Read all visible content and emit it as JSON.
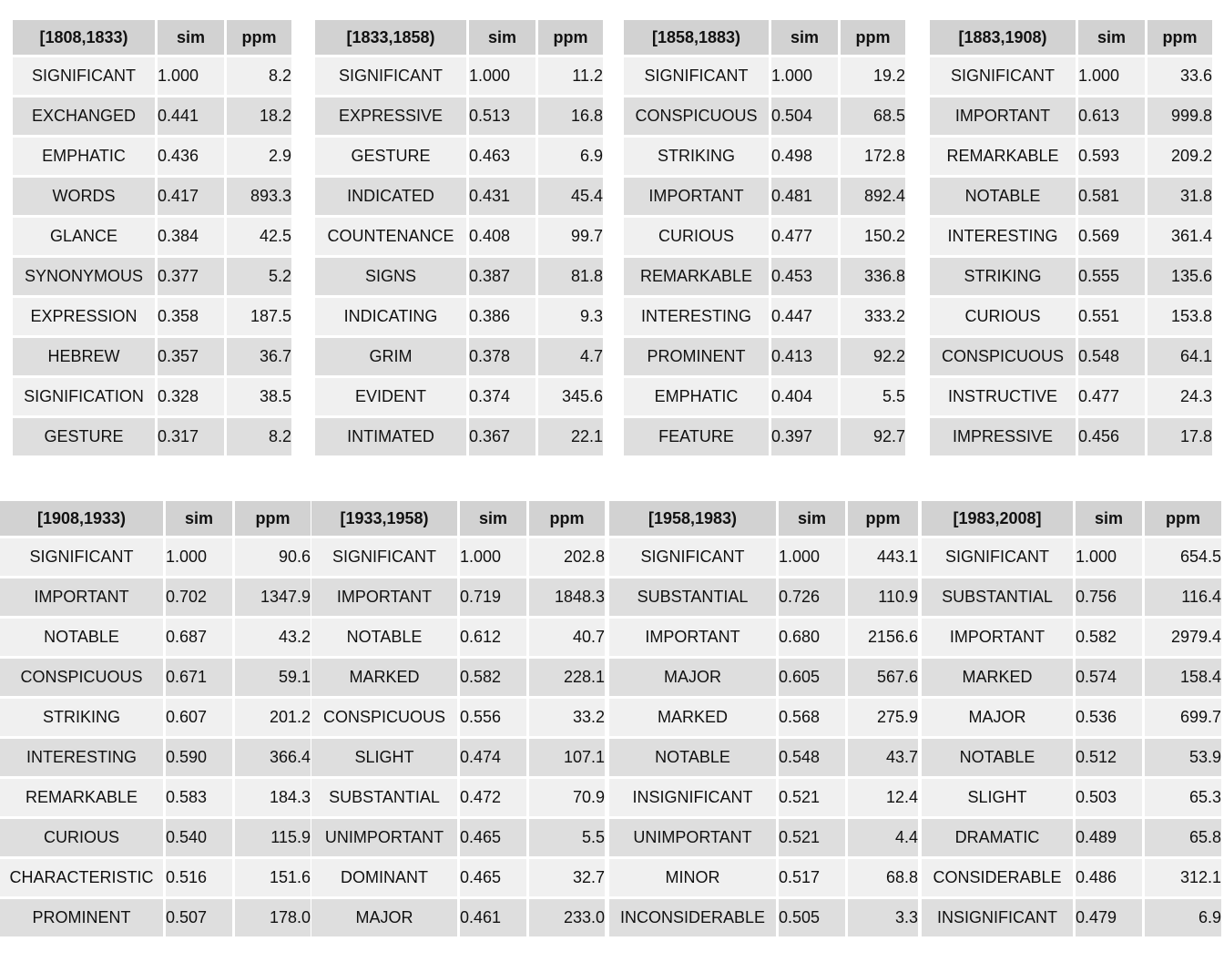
{
  "tables": [
    {
      "period": "[1808,1833)",
      "sim_header": "sim",
      "ppm_header": "ppm",
      "rows": [
        {
          "word": "SIGNIFICANT",
          "sim": "1.000",
          "ppm": "8.2"
        },
        {
          "word": "EXCHANGED",
          "sim": "0.441",
          "ppm": "18.2"
        },
        {
          "word": "EMPHATIC",
          "sim": "0.436",
          "ppm": "2.9"
        },
        {
          "word": "WORDS",
          "sim": "0.417",
          "ppm": "893.3"
        },
        {
          "word": "GLANCE",
          "sim": "0.384",
          "ppm": "42.5"
        },
        {
          "word": "SYNONYMOUS",
          "sim": "0.377",
          "ppm": "5.2"
        },
        {
          "word": "EXPRESSION",
          "sim": "0.358",
          "ppm": "187.5"
        },
        {
          "word": "HEBREW",
          "sim": "0.357",
          "ppm": "36.7"
        },
        {
          "word": "SIGNIFICATION",
          "sim": "0.328",
          "ppm": "38.5"
        },
        {
          "word": "GESTURE",
          "sim": "0.317",
          "ppm": "8.2"
        }
      ]
    },
    {
      "period": "[1833,1858)",
      "sim_header": "sim",
      "ppm_header": "ppm",
      "rows": [
        {
          "word": "SIGNIFICANT",
          "sim": "1.000",
          "ppm": "11.2"
        },
        {
          "word": "EXPRESSIVE",
          "sim": "0.513",
          "ppm": "16.8"
        },
        {
          "word": "GESTURE",
          "sim": "0.463",
          "ppm": "6.9"
        },
        {
          "word": "INDICATED",
          "sim": "0.431",
          "ppm": "45.4"
        },
        {
          "word": "COUNTENANCE",
          "sim": "0.408",
          "ppm": "99.7"
        },
        {
          "word": "SIGNS",
          "sim": "0.387",
          "ppm": "81.8"
        },
        {
          "word": "INDICATING",
          "sim": "0.386",
          "ppm": "9.3"
        },
        {
          "word": "GRIM",
          "sim": "0.378",
          "ppm": "4.7"
        },
        {
          "word": "EVIDENT",
          "sim": "0.374",
          "ppm": "345.6"
        },
        {
          "word": "INTIMATED",
          "sim": "0.367",
          "ppm": "22.1"
        }
      ]
    },
    {
      "period": "[1858,1883)",
      "sim_header": "sim",
      "ppm_header": "ppm",
      "rows": [
        {
          "word": "SIGNIFICANT",
          "sim": "1.000",
          "ppm": "19.2"
        },
        {
          "word": "CONSPICUOUS",
          "sim": "0.504",
          "ppm": "68.5"
        },
        {
          "word": "STRIKING",
          "sim": "0.498",
          "ppm": "172.8"
        },
        {
          "word": "IMPORTANT",
          "sim": "0.481",
          "ppm": "892.4"
        },
        {
          "word": "CURIOUS",
          "sim": "0.477",
          "ppm": "150.2"
        },
        {
          "word": "REMARKABLE",
          "sim": "0.453",
          "ppm": "336.8"
        },
        {
          "word": "INTERESTING",
          "sim": "0.447",
          "ppm": "333.2"
        },
        {
          "word": "PROMINENT",
          "sim": "0.413",
          "ppm": "92.2"
        },
        {
          "word": "EMPHATIC",
          "sim": "0.404",
          "ppm": "5.5"
        },
        {
          "word": "FEATURE",
          "sim": "0.397",
          "ppm": "92.7"
        }
      ]
    },
    {
      "period": "[1883,1908)",
      "sim_header": "sim",
      "ppm_header": "ppm",
      "rows": [
        {
          "word": "SIGNIFICANT",
          "sim": "1.000",
          "ppm": "33.6"
        },
        {
          "word": "IMPORTANT",
          "sim": "0.613",
          "ppm": "999.8"
        },
        {
          "word": "REMARKABLE",
          "sim": "0.593",
          "ppm": "209.2"
        },
        {
          "word": "NOTABLE",
          "sim": "0.581",
          "ppm": "31.8"
        },
        {
          "word": "INTERESTING",
          "sim": "0.569",
          "ppm": "361.4"
        },
        {
          "word": "STRIKING",
          "sim": "0.555",
          "ppm": "135.6"
        },
        {
          "word": "CURIOUS",
          "sim": "0.551",
          "ppm": "153.8"
        },
        {
          "word": "CONSPICUOUS",
          "sim": "0.548",
          "ppm": "64.1"
        },
        {
          "word": "INSTRUCTIVE",
          "sim": "0.477",
          "ppm": "24.3"
        },
        {
          "word": "IMPRESSIVE",
          "sim": "0.456",
          "ppm": "17.8"
        }
      ]
    },
    {
      "period": "[1908,1933)",
      "sim_header": "sim",
      "ppm_header": "ppm",
      "rows": [
        {
          "word": "SIGNIFICANT",
          "sim": "1.000",
          "ppm": "90.6"
        },
        {
          "word": "IMPORTANT",
          "sim": "0.702",
          "ppm": "1347.9"
        },
        {
          "word": "NOTABLE",
          "sim": "0.687",
          "ppm": "43.2"
        },
        {
          "word": "CONSPICUOUS",
          "sim": "0.671",
          "ppm": "59.1"
        },
        {
          "word": "STRIKING",
          "sim": "0.607",
          "ppm": "201.2"
        },
        {
          "word": "INTERESTING",
          "sim": "0.590",
          "ppm": "366.4"
        },
        {
          "word": "REMARKABLE",
          "sim": "0.583",
          "ppm": "184.3"
        },
        {
          "word": "CURIOUS",
          "sim": "0.540",
          "ppm": "115.9"
        },
        {
          "word": "CHARACTERISTIC",
          "sim": "0.516",
          "ppm": "151.6"
        },
        {
          "word": "PROMINENT",
          "sim": "0.507",
          "ppm": "178.0"
        }
      ]
    },
    {
      "period": "[1933,1958)",
      "sim_header": "sim",
      "ppm_header": "ppm",
      "rows": [
        {
          "word": "SIGNIFICANT",
          "sim": "1.000",
          "ppm": "202.8"
        },
        {
          "word": "IMPORTANT",
          "sim": "0.719",
          "ppm": "1848.3"
        },
        {
          "word": "NOTABLE",
          "sim": "0.612",
          "ppm": "40.7"
        },
        {
          "word": "MARKED",
          "sim": "0.582",
          "ppm": "228.1"
        },
        {
          "word": "CONSPICUOUS",
          "sim": "0.556",
          "ppm": "33.2"
        },
        {
          "word": "SLIGHT",
          "sim": "0.474",
          "ppm": "107.1"
        },
        {
          "word": "SUBSTANTIAL",
          "sim": "0.472",
          "ppm": "70.9"
        },
        {
          "word": "UNIMPORTANT",
          "sim": "0.465",
          "ppm": "5.5"
        },
        {
          "word": "DOMINANT",
          "sim": "0.465",
          "ppm": "32.7"
        },
        {
          "word": "MAJOR",
          "sim": "0.461",
          "ppm": "233.0"
        }
      ]
    },
    {
      "period": "[1958,1983)",
      "sim_header": "sim",
      "ppm_header": "ppm",
      "rows": [
        {
          "word": "SIGNIFICANT",
          "sim": "1.000",
          "ppm": "443.1"
        },
        {
          "word": "SUBSTANTIAL",
          "sim": "0.726",
          "ppm": "110.9"
        },
        {
          "word": "IMPORTANT",
          "sim": "0.680",
          "ppm": "2156.6"
        },
        {
          "word": "MAJOR",
          "sim": "0.605",
          "ppm": "567.6"
        },
        {
          "word": "MARKED",
          "sim": "0.568",
          "ppm": "275.9"
        },
        {
          "word": "NOTABLE",
          "sim": "0.548",
          "ppm": "43.7"
        },
        {
          "word": "INSIGNIFICANT",
          "sim": "0.521",
          "ppm": "12.4"
        },
        {
          "word": "UNIMPORTANT",
          "sim": "0.521",
          "ppm": "4.4"
        },
        {
          "word": "MINOR",
          "sim": "0.517",
          "ppm": "68.8"
        },
        {
          "word": "INCONSIDERABLE",
          "sim": "0.505",
          "ppm": "3.3"
        }
      ]
    },
    {
      "period": "[1983,2008]",
      "sim_header": "sim",
      "ppm_header": "ppm",
      "rows": [
        {
          "word": "SIGNIFICANT",
          "sim": "1.000",
          "ppm": "654.5"
        },
        {
          "word": "SUBSTANTIAL",
          "sim": "0.756",
          "ppm": "116.4"
        },
        {
          "word": "IMPORTANT",
          "sim": "0.582",
          "ppm": "2979.4"
        },
        {
          "word": "MARKED",
          "sim": "0.574",
          "ppm": "158.4"
        },
        {
          "word": "MAJOR",
          "sim": "0.536",
          "ppm": "699.7"
        },
        {
          "word": "NOTABLE",
          "sim": "0.512",
          "ppm": "53.9"
        },
        {
          "word": "SLIGHT",
          "sim": "0.503",
          "ppm": "65.3"
        },
        {
          "word": "DRAMATIC",
          "sim": "0.489",
          "ppm": "65.8"
        },
        {
          "word": "CONSIDERABLE",
          "sim": "0.486",
          "ppm": "312.1"
        },
        {
          "word": "INSIGNIFICANT",
          "sim": "0.479",
          "ppm": "6.9"
        }
      ]
    }
  ]
}
